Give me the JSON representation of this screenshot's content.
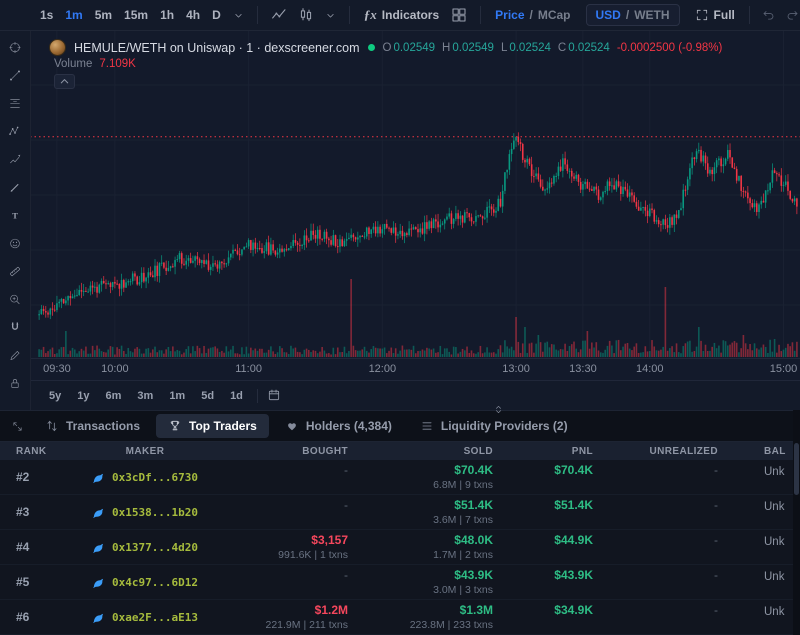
{
  "toolbar": {
    "timeframes": [
      "1s",
      "1m",
      "5m",
      "15m",
      "1h",
      "4h",
      "D"
    ],
    "active_timeframe": "1m",
    "indicators_label": "Indicators",
    "price_mcap": {
      "price": "Price",
      "sep": "/",
      "mcap": "MCap"
    },
    "currency": {
      "usd": "USD",
      "sep": "/",
      "quote": "WETH"
    },
    "full_label": "Full"
  },
  "sidebar": {
    "tools": [
      {
        "name": "crosshair"
      },
      {
        "name": "trend-line"
      },
      {
        "name": "fib-retracement"
      },
      {
        "name": "xabcd-pattern"
      },
      {
        "name": "forecast"
      },
      {
        "name": "brush"
      },
      {
        "name": "text"
      },
      {
        "name": "emoji"
      },
      {
        "name": "ruler"
      },
      {
        "name": "zoom-in"
      },
      {
        "name": "magnet"
      },
      {
        "name": "pencil"
      },
      {
        "name": "lock"
      }
    ]
  },
  "chart": {
    "legend": {
      "symbol": "HEMULE/WETH on Uniswap · 1 · dexscreener.com",
      "o_label": "O",
      "o_value": "0.02549",
      "h_label": "H",
      "h_value": "0.02549",
      "l_label": "L",
      "l_value": "0.02524",
      "c_label": "C",
      "c_value": "0.02524",
      "change": "-0.0002500 (-0.98%)"
    },
    "volume_label": "Volume",
    "volume_value": "7.109K",
    "time_ticks": [
      {
        "label": "09:30",
        "t": 8
      },
      {
        "label": "10:00",
        "t": 34
      },
      {
        "label": "11:00",
        "t": 94
      },
      {
        "label": "12:00",
        "t": 154
      },
      {
        "label": "13:00",
        "t": 214
      },
      {
        "label": "13:30",
        "t": 244
      },
      {
        "label": "14:00",
        "t": 274
      },
      {
        "label": "15:00",
        "t": 334
      }
    ],
    "range_buttons": [
      "5y",
      "1y",
      "6m",
      "3m",
      "1m",
      "5d",
      "1d"
    ],
    "price_line": 0.0258,
    "colors": {
      "up": "#089981",
      "down": "#f23645"
    },
    "series": {
      "total": 341,
      "seed": 11,
      "noise": 5e-05,
      "wick": 6e-05,
      "price_min": 0.02404,
      "price_max": 0.02665,
      "keyframes": [
        [
          0,
          0.02438
        ],
        [
          8,
          0.02444
        ],
        [
          20,
          0.02458
        ],
        [
          34,
          0.02462
        ],
        [
          50,
          0.0247
        ],
        [
          64,
          0.02483
        ],
        [
          80,
          0.02478
        ],
        [
          94,
          0.02494
        ],
        [
          108,
          0.0249
        ],
        [
          124,
          0.02503
        ],
        [
          136,
          0.02497
        ],
        [
          154,
          0.02508
        ],
        [
          168,
          0.02504
        ],
        [
          184,
          0.02514
        ],
        [
          198,
          0.02516
        ],
        [
          208,
          0.02528
        ],
        [
          212,
          0.02566
        ],
        [
          215,
          0.02578
        ],
        [
          222,
          0.0255
        ],
        [
          229,
          0.02536
        ],
        [
          236,
          0.0256
        ],
        [
          244,
          0.02542
        ],
        [
          252,
          0.02534
        ],
        [
          258,
          0.02544
        ],
        [
          266,
          0.02532
        ],
        [
          274,
          0.0252
        ],
        [
          282,
          0.02508
        ],
        [
          288,
          0.0252
        ],
        [
          296,
          0.02572
        ],
        [
          302,
          0.02552
        ],
        [
          310,
          0.02566
        ],
        [
          318,
          0.02532
        ],
        [
          324,
          0.02522
        ],
        [
          330,
          0.0255
        ],
        [
          336,
          0.0254
        ],
        [
          341,
          0.02524
        ]
      ]
    },
    "volume_spikes": [
      [
        12,
        26,
        "u"
      ],
      [
        140,
        78,
        "d"
      ],
      [
        214,
        40,
        "d"
      ],
      [
        218,
        30,
        "u"
      ],
      [
        224,
        22,
        "u"
      ],
      [
        246,
        26,
        "d"
      ],
      [
        281,
        70,
        "d"
      ],
      [
        296,
        30,
        "u"
      ],
      [
        316,
        22,
        "d"
      ],
      [
        330,
        18,
        "u"
      ]
    ]
  },
  "tabs": [
    {
      "name": "transactions",
      "icon": "swap",
      "label": "Transactions",
      "active": false
    },
    {
      "name": "top-traders",
      "icon": "trophy",
      "label": "Top Traders",
      "active": true
    },
    {
      "name": "holders",
      "icon": "heart",
      "label": "Holders (4,384)",
      "active": false
    },
    {
      "name": "liquidity-providers",
      "icon": "list",
      "label": "Liquidity Providers (2)",
      "active": false
    }
  ],
  "table": {
    "columns": [
      {
        "key": "rank",
        "label": "RANK",
        "align": "left"
      },
      {
        "key": "maker",
        "label": "MAKER",
        "align": "center"
      },
      {
        "key": "bought",
        "label": "BOUGHT",
        "align": "right"
      },
      {
        "key": "sold",
        "label": "SOLD",
        "align": "right"
      },
      {
        "key": "pnl",
        "label": "PNL",
        "align": "right"
      },
      {
        "key": "unrealized",
        "label": "UNREALIZED",
        "align": "right"
      },
      {
        "key": "balance",
        "label": "BAL",
        "align": "bal"
      }
    ],
    "rows": [
      {
        "rank": "#2",
        "maker": "0x3cDf...6730",
        "bought": {
          "value": "-",
          "sub": ""
        },
        "sold": {
          "value": "$70.4K",
          "sub": "6.8M | 9 txns"
        },
        "pnl": "$70.4K",
        "unrealized": "-",
        "balance": "Unk"
      },
      {
        "rank": "#3",
        "maker": "0x1538...1b20",
        "bought": {
          "value": "-",
          "sub": ""
        },
        "sold": {
          "value": "$51.4K",
          "sub": "3.6M | 7 txns"
        },
        "pnl": "$51.4K",
        "unrealized": "-",
        "balance": "Unk"
      },
      {
        "rank": "#4",
        "maker": "0x1377...4d20",
        "bought": {
          "value": "$3,157",
          "sub": "991.6K | 1 txns"
        },
        "sold": {
          "value": "$48.0K",
          "sub": "1.7M | 2 txns"
        },
        "pnl": "$44.9K",
        "unrealized": "-",
        "balance": "Unk"
      },
      {
        "rank": "#5",
        "maker": "0x4c97...6D12",
        "bought": {
          "value": "-",
          "sub": ""
        },
        "sold": {
          "value": "$43.9K",
          "sub": "3.0M | 3 txns"
        },
        "pnl": "$43.9K",
        "unrealized": "-",
        "balance": "Unk"
      },
      {
        "rank": "#6",
        "maker": "0xae2F...aE13",
        "bought": {
          "value": "$1.2M",
          "sub": "221.9M | 211 txns"
        },
        "sold": {
          "value": "$1.3M",
          "sub": "223.8M | 233 txns"
        },
        "pnl": "$34.9K",
        "unrealized": "-",
        "balance": "Unk"
      }
    ]
  },
  "colors": {
    "accent_blue": "#3179f5",
    "gain_green": "#2ebd85",
    "loss_red": "#f6475d",
    "address_green": "#a6bb3d"
  }
}
